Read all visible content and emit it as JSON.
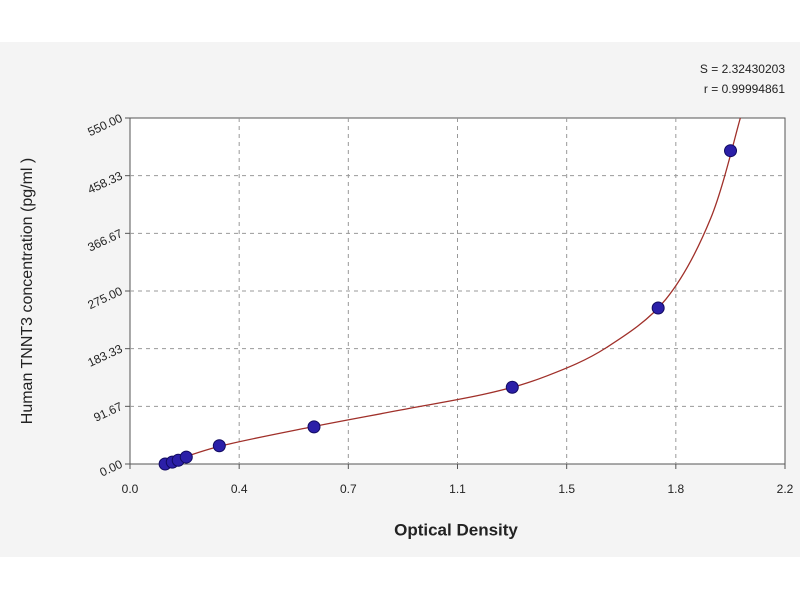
{
  "chart_data": {
    "type": "scatter",
    "x_label": "Optical Density",
    "y_label": "Human TNNT3 concentration (pg/ml )",
    "annotations": [
      "S = 2.32430203",
      "r = 0.99994861"
    ],
    "xlim": [
      0,
      2.2
    ],
    "ylim": [
      0,
      550
    ],
    "xticks": [
      {
        "value": 0,
        "label": "0.0"
      },
      {
        "value": 0.3667,
        "label": "0.4"
      },
      {
        "value": 0.7333,
        "label": "0.7"
      },
      {
        "value": 1.1,
        "label": "1.1"
      },
      {
        "value": 1.4667,
        "label": "1.5"
      },
      {
        "value": 1.8333,
        "label": "1.8"
      },
      {
        "value": 2.2,
        "label": "2.2"
      }
    ],
    "yticks": [
      {
        "value": 0,
        "label": "0.00"
      },
      {
        "value": 91.67,
        "label": "91.67"
      },
      {
        "value": 183.33,
        "label": "183.33"
      },
      {
        "value": 275,
        "label": "275.00"
      },
      {
        "value": 366.67,
        "label": "366.67"
      },
      {
        "value": 458.33,
        "label": "458.33"
      },
      {
        "value": 550,
        "label": "550.00"
      }
    ],
    "grid": true,
    "x": [
      0.118,
      0.142,
      0.162,
      0.189,
      0.3,
      0.618,
      1.284,
      1.774,
      2.017
    ],
    "values": [
      0,
      3,
      6,
      11,
      29,
      59,
      122,
      248,
      498
    ],
    "color": "#2b1fa8",
    "fit_curve": {
      "color": "#a0302a",
      "x": [
        0.118,
        0.3,
        0.6,
        0.9,
        1.2,
        1.4,
        1.6,
        1.8,
        1.95,
        2.05
      ],
      "values": [
        0,
        28,
        58,
        85,
        112,
        140,
        185,
        262,
        390,
        550
      ]
    }
  }
}
